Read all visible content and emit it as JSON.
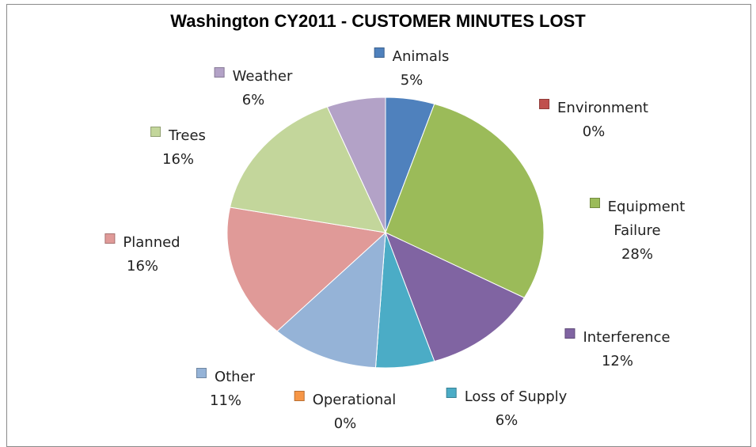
{
  "chart_data": {
    "type": "pie",
    "title": "Washington CY2011 - CUSTOMER MINUTES LOST",
    "categories": [
      "Animals",
      "Environment",
      "Equipment Failure",
      "Interference",
      "Loss of Supply",
      "Operational",
      "Other",
      "Planned",
      "Trees",
      "Weather"
    ],
    "values": [
      5,
      0,
      28,
      12,
      6,
      0,
      11,
      16,
      16,
      6
    ],
    "value_labels": [
      "5%",
      "0%",
      "28%",
      "12%",
      "6%",
      "0%",
      "11%",
      "16%",
      "16%",
      "6%"
    ],
    "colors": [
      "#4f81bd",
      "#c0504d",
      "#9bbb59",
      "#8064a2",
      "#4bacc6",
      "#f79646",
      "#95b3d7",
      "#e09a98",
      "#c3d69b",
      "#b3a2c7"
    ]
  }
}
